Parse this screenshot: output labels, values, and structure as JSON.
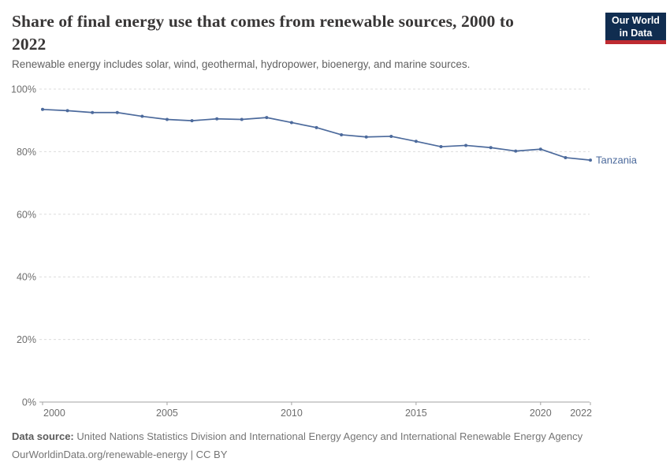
{
  "header": {
    "title": "Share of final energy use that comes from renewable sources, 2000 to 2022",
    "title_lines": [
      "Share of final energy use that comes from renewable sources, 2000 to",
      "2022"
    ],
    "subtitle": "Renewable energy includes solar, wind, geothermal, hydropower, bioenergy, and marine sources.",
    "logo": {
      "line1": "Our World",
      "line2": "in Data",
      "bg_color": "#102d50",
      "accent_color": "#be2b31"
    }
  },
  "chart_data": {
    "type": "line",
    "title": "Share of final energy use that comes from renewable sources, 2000 to 2022",
    "xlabel": "",
    "ylabel": "",
    "xlim": [
      2000,
      2022
    ],
    "ylim": [
      0,
      100
    ],
    "grid": "horizontal-dashed",
    "legend_position": "end-of-line-label",
    "x_ticks": [
      {
        "value": 2000,
        "label": "2000"
      },
      {
        "value": 2005,
        "label": "2005"
      },
      {
        "value": 2010,
        "label": "2010"
      },
      {
        "value": 2015,
        "label": "2015"
      },
      {
        "value": 2020,
        "label": "2020"
      },
      {
        "value": 2022,
        "label": "2022"
      }
    ],
    "y_ticks": [
      {
        "value": 0,
        "label": "0%"
      },
      {
        "value": 20,
        "label": "20%"
      },
      {
        "value": 40,
        "label": "40%"
      },
      {
        "value": 60,
        "label": "60%"
      },
      {
        "value": 80,
        "label": "80%"
      },
      {
        "value": 100,
        "label": "100%"
      }
    ],
    "series": [
      {
        "name": "Tanzania",
        "color": "#4c6a9c",
        "x": [
          2000,
          2001,
          2002,
          2003,
          2004,
          2005,
          2006,
          2007,
          2008,
          2009,
          2010,
          2011,
          2012,
          2013,
          2014,
          2015,
          2016,
          2017,
          2018,
          2019,
          2020,
          2021,
          2022
        ],
        "values": [
          93.5,
          93.1,
          92.5,
          92.5,
          91.3,
          90.3,
          89.9,
          90.5,
          90.3,
          90.9,
          89.3,
          87.7,
          85.4,
          84.7,
          84.9,
          83.3,
          81.6,
          82.0,
          81.3,
          80.2,
          80.8,
          78.1,
          77.3
        ]
      }
    ]
  },
  "footer": {
    "source_label": "Data source:",
    "source_text": "United Nations Statistics Division and International Energy Agency and International Renewable Energy Agency",
    "note_line": "OurWorldinData.org/renewable-energy | CC BY"
  }
}
